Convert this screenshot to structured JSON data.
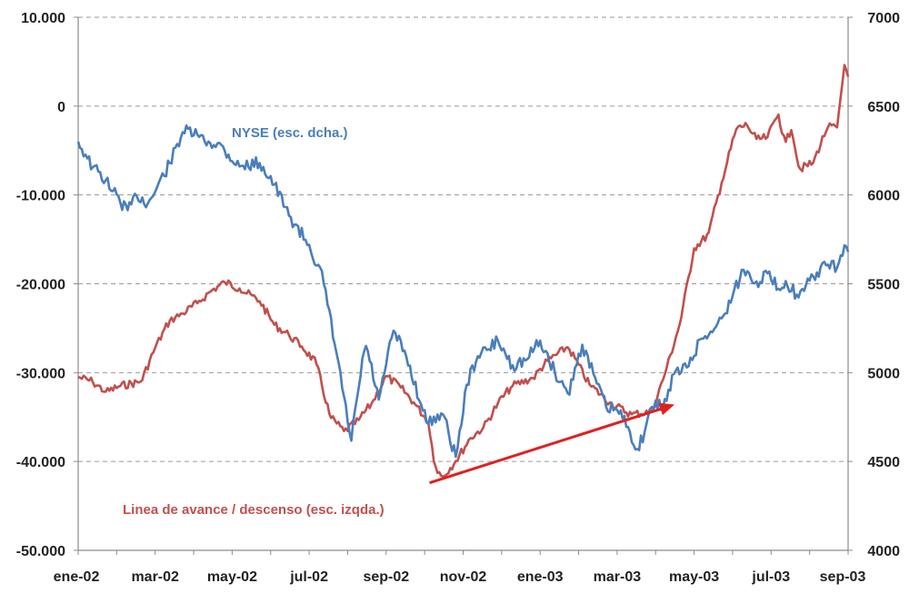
{
  "chart_data": {
    "type": "line",
    "title": "",
    "x_tick_labels": [
      "ene-02",
      "mar-02",
      "may-02",
      "jul-02",
      "sep-02",
      "nov-02",
      "ene-03",
      "mar-03",
      "may-03",
      "jul-03",
      "sep-03"
    ],
    "y_left": {
      "min": -50000,
      "max": 10000,
      "tick_labels": [
        "10.000",
        "0",
        "-10.000",
        "-20.000",
        "-30.000",
        "-40.000",
        "-50.000"
      ],
      "tick_values": [
        10000,
        0,
        -10000,
        -20000,
        -30000,
        -40000,
        -50000
      ]
    },
    "y_right": {
      "min": 4000,
      "max": 7000,
      "tick_labels": [
        "7000",
        "6500",
        "6000",
        "5500",
        "5000",
        "4500",
        "4000"
      ],
      "tick_values": [
        7000,
        6500,
        6000,
        5500,
        5000,
        4500,
        4000
      ]
    },
    "grid": "horizontal-dashed",
    "series": [
      {
        "name": "NYSE (esc. dcha.)",
        "axis": "right",
        "color": "#4a7ebb",
        "t": [
          0,
          0.1,
          0.2,
          0.4,
          0.5,
          0.7,
          0.85,
          1.0,
          1.3,
          1.5,
          1.7,
          1.8,
          2.0,
          2.3,
          2.6,
          2.8,
          3.0,
          3.3,
          3.5,
          3.7,
          3.9,
          4.1,
          4.3,
          4.5,
          4.7,
          4.9,
          5.0,
          5.2,
          5.4,
          5.55,
          5.7,
          5.85,
          6.0,
          6.2,
          6.4,
          6.6,
          6.8,
          7.0,
          7.2,
          7.4,
          7.55,
          7.7,
          7.85,
          8.0,
          8.2,
          8.4,
          8.5,
          8.7,
          8.9,
          9.1,
          9.2,
          9.35,
          9.5,
          9.7,
          9.85,
          10.0,
          10.1,
          10.3,
          10.5,
          10.7,
          10.85,
          10.95,
          11.0
        ],
        "values": [
          6300,
          6230,
          6160,
          6080,
          6020,
          5910,
          6000,
          5950,
          6170,
          6360,
          6340,
          6300,
          6290,
          6160,
          6180,
          6060,
          5890,
          5720,
          5520,
          5090,
          4610,
          5170,
          4840,
          5240,
          5080,
          4820,
          4710,
          4780,
          4520,
          4930,
          5090,
          5130,
          5180,
          5040,
          5070,
          5180,
          5010,
          4880,
          5160,
          4950,
          4800,
          4790,
          4700,
          4560,
          4810,
          4830,
          4990,
          5030,
          5190,
          5250,
          5310,
          5430,
          5580,
          5510,
          5560,
          5470,
          5520,
          5420,
          5540,
          5610,
          5590,
          5720,
          5680
        ]
      },
      {
        "name": "Linea de avance / descenso (esc. izqda.)",
        "axis": "left",
        "color": "#c0504d",
        "t": [
          0,
          0.2,
          0.4,
          0.6,
          0.9,
          1.1,
          1.3,
          1.5,
          1.7,
          1.9,
          2.1,
          2.3,
          2.6,
          2.8,
          3.0,
          3.2,
          3.4,
          3.6,
          3.8,
          4.0,
          4.2,
          4.4,
          4.6,
          4.8,
          5.0,
          5.1,
          5.2,
          5.4,
          5.6,
          5.8,
          6.0,
          6.2,
          6.5,
          6.7,
          7.0,
          7.3,
          7.6,
          7.9,
          8.2,
          8.4,
          8.6,
          8.8,
          9.0,
          9.2,
          9.4,
          9.55,
          9.7,
          9.85,
          10.0,
          10.1,
          10.2,
          10.3,
          10.5,
          10.7,
          10.85,
          10.95,
          11.0
        ],
        "values": [
          -30500,
          -31000,
          -32200,
          -31500,
          -31000,
          -27200,
          -24200,
          -23300,
          -22200,
          -20800,
          -19800,
          -20500,
          -22000,
          -24600,
          -25700,
          -27100,
          -28900,
          -35000,
          -36600,
          -35400,
          -33400,
          -30400,
          -31600,
          -33400,
          -35500,
          -40500,
          -41800,
          -39900,
          -37400,
          -36100,
          -33400,
          -31500,
          -30600,
          -28700,
          -27100,
          -31300,
          -33400,
          -34700,
          -34400,
          -29700,
          -24400,
          -16000,
          -14500,
          -8400,
          -2600,
          -2100,
          -3800,
          -3500,
          -800,
          -4200,
          -2500,
          -7100,
          -6400,
          -2400,
          -2400,
          4800,
          3300
        ]
      }
    ],
    "annotations": [
      {
        "text": "NYSE (esc. dcha.)",
        "color": "#4a7ebb"
      },
      {
        "text": "Linea de avance / descenso (esc. izqda.)",
        "color": "#c0504d"
      },
      {
        "type": "arrow",
        "color": "#e02020",
        "from_t": 5.02,
        "to_t": 8.52,
        "from_left_value": -42400,
        "to_left_value": -33600
      }
    ]
  }
}
